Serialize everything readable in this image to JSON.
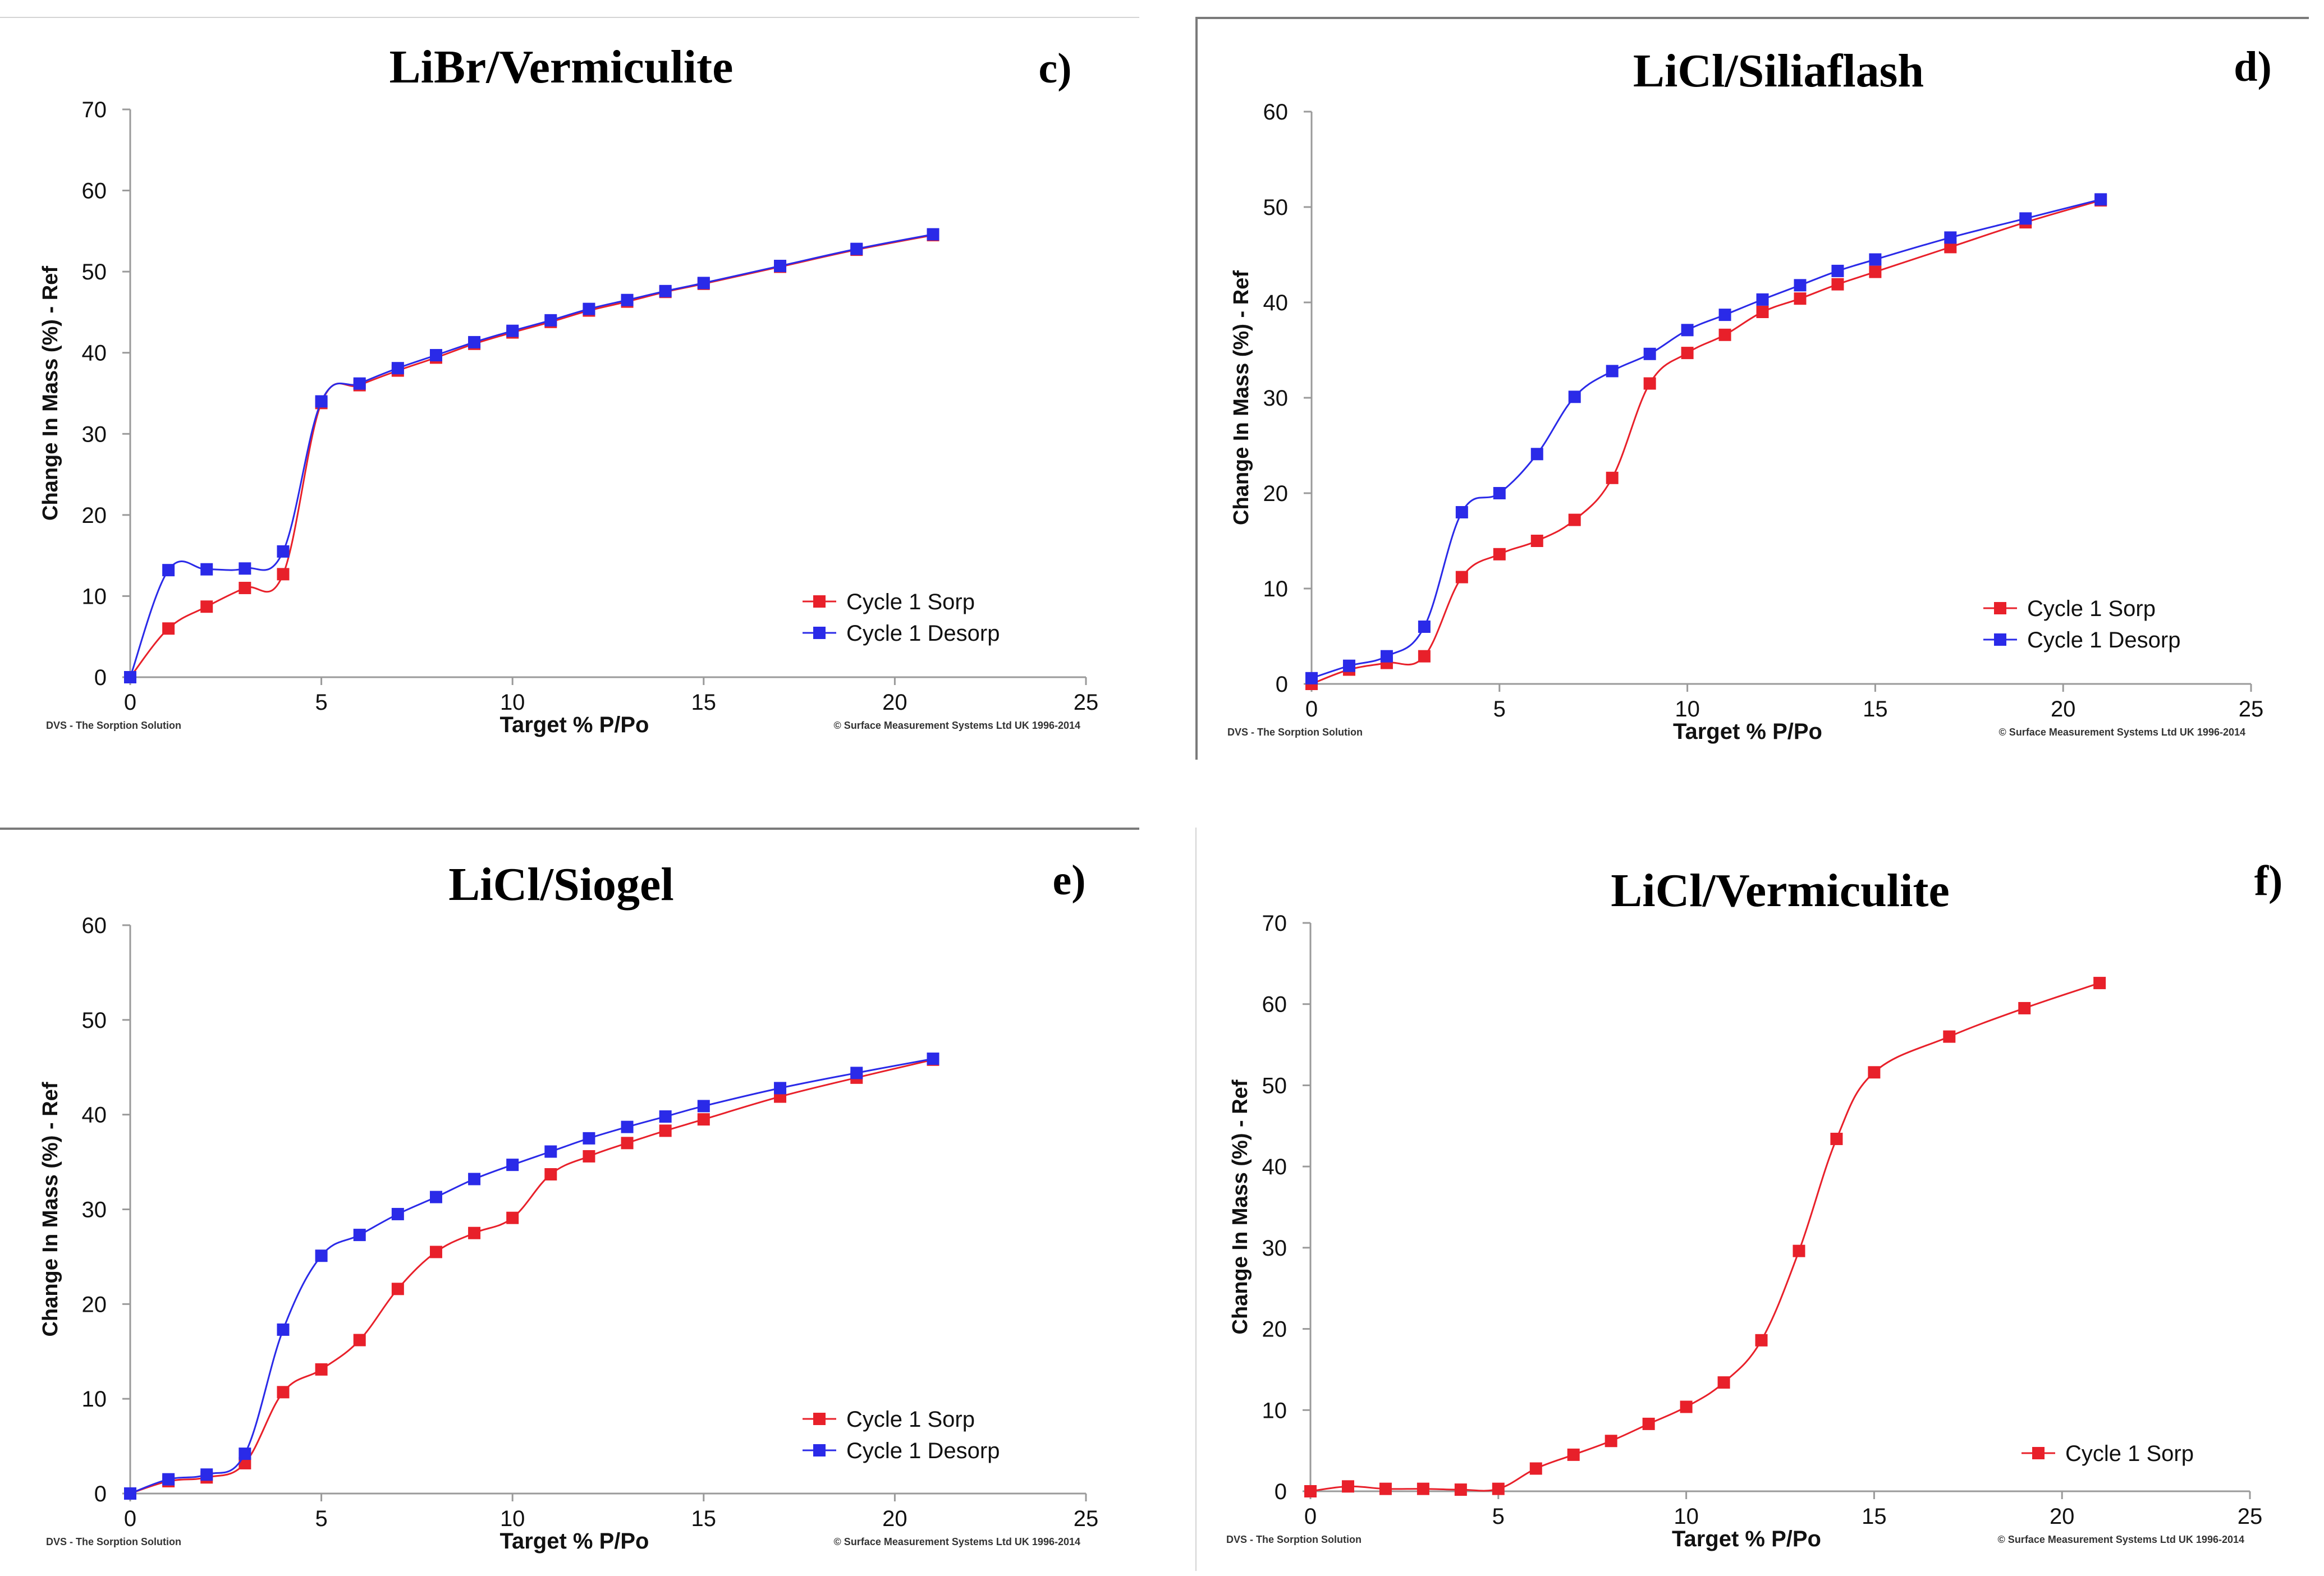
{
  "chart_data": [
    {
      "type": "line",
      "panel": "c)",
      "title": "LiBr/Vermiculite",
      "xlabel": "Target % P/Po",
      "ylabel": "Change In Mass (%) - Ref",
      "xlim": [
        0,
        25
      ],
      "ylim": [
        0,
        70
      ],
      "xticks": [
        0,
        5,
        10,
        15,
        20,
        25
      ],
      "yticks": [
        0,
        10,
        20,
        30,
        40,
        50,
        60,
        70
      ],
      "legend_position": "bottom-right",
      "footer_left": "DVS - The Sorption Solution",
      "footer_right": "© Surface Measurement Systems Ltd UK 1996-2014",
      "series": [
        {
          "name": "Cycle 1 Sorp",
          "color": "#e8202a",
          "x": [
            0,
            1,
            2,
            3,
            4,
            5,
            6,
            7,
            8,
            9,
            10,
            11,
            12,
            13,
            14,
            15,
            17,
            19,
            21
          ],
          "y": [
            0,
            6,
            8.7,
            11,
            12.7,
            33.8,
            36,
            37.8,
            39.4,
            41.1,
            42.5,
            43.8,
            45.2,
            46.3,
            47.5,
            48.5,
            50.6,
            52.7,
            54.5
          ]
        },
        {
          "name": "Cycle 1 Desorp",
          "color": "#2a2ae8",
          "x": [
            0,
            1,
            2,
            3,
            4,
            5,
            6,
            7,
            8,
            9,
            10,
            11,
            12,
            13,
            14,
            15,
            17,
            19,
            21
          ],
          "y": [
            0,
            13.2,
            13.3,
            13.4,
            15.5,
            34,
            36.2,
            38.1,
            39.7,
            41.3,
            42.7,
            44,
            45.4,
            46.5,
            47.6,
            48.6,
            50.7,
            52.8,
            54.6
          ]
        }
      ]
    },
    {
      "type": "line",
      "panel": "d)",
      "title": "LiCl/Siliaflash",
      "xlabel": "Target % P/Po",
      "ylabel": "Change In Mass (%) - Ref",
      "xlim": [
        0,
        25
      ],
      "ylim": [
        0,
        60
      ],
      "xticks": [
        0,
        5,
        10,
        15,
        20,
        25
      ],
      "yticks": [
        0,
        10,
        20,
        30,
        40,
        50,
        60
      ],
      "legend_position": "bottom-right",
      "footer_left": "DVS - The Sorption Solution",
      "footer_right": "© Surface Measurement Systems Ltd UK 1996-2014",
      "series": [
        {
          "name": "Cycle 1 Sorp",
          "color": "#e8202a",
          "x": [
            0,
            1,
            2,
            3,
            4,
            5,
            6,
            7,
            8,
            9,
            10,
            11,
            12,
            13,
            14,
            15,
            17,
            19,
            21
          ],
          "y": [
            0,
            1.5,
            2.2,
            2.9,
            11.2,
            13.6,
            15,
            17.2,
            21.6,
            31.5,
            34.7,
            36.6,
            39,
            40.4,
            41.9,
            43.2,
            45.8,
            48.4,
            50.7
          ]
        },
        {
          "name": "Cycle 1 Desorp",
          "color": "#2a2ae8",
          "x": [
            0,
            1,
            2,
            3,
            4,
            5,
            6,
            7,
            8,
            9,
            10,
            11,
            12,
            13,
            14,
            15,
            17,
            19,
            21
          ],
          "y": [
            0.6,
            1.9,
            2.9,
            6,
            18,
            20,
            24.1,
            30.1,
            32.8,
            34.6,
            37.1,
            38.7,
            40.3,
            41.8,
            43.3,
            44.5,
            46.8,
            48.8,
            50.8
          ]
        }
      ]
    },
    {
      "type": "line",
      "panel": "e)",
      "title": "LiCl/Siogel",
      "xlabel": "Target % P/Po",
      "ylabel": "Change In Mass (%) - Ref",
      "xlim": [
        0,
        25
      ],
      "ylim": [
        0,
        60
      ],
      "xticks": [
        0,
        5,
        10,
        15,
        20,
        25
      ],
      "yticks": [
        0,
        10,
        20,
        30,
        40,
        50,
        60
      ],
      "legend_position": "bottom-right",
      "footer_left": "DVS - The Sorption Solution",
      "footer_right": "© Surface Measurement Systems Ltd UK 1996-2014",
      "series": [
        {
          "name": "Cycle 1 Sorp",
          "color": "#e8202a",
          "x": [
            0,
            1,
            2,
            3,
            4,
            5,
            6,
            7,
            8,
            9,
            10,
            11,
            12,
            13,
            14,
            15,
            17,
            19,
            21
          ],
          "y": [
            0,
            1.3,
            1.7,
            3.2,
            10.7,
            13.1,
            16.2,
            21.6,
            25.5,
            27.5,
            29.1,
            33.7,
            35.6,
            37,
            38.3,
            39.5,
            41.9,
            43.9,
            45.8
          ]
        },
        {
          "name": "Cycle 1 Desorp",
          "color": "#2a2ae8",
          "x": [
            0,
            1,
            2,
            3,
            4,
            5,
            6,
            7,
            8,
            9,
            10,
            11,
            12,
            13,
            14,
            15,
            17,
            19,
            21
          ],
          "y": [
            0,
            1.5,
            2,
            4.2,
            17.3,
            25.1,
            27.3,
            29.5,
            31.3,
            33.2,
            34.7,
            36.1,
            37.5,
            38.7,
            39.8,
            40.9,
            42.8,
            44.4,
            45.9
          ]
        }
      ]
    },
    {
      "type": "line",
      "panel": "f)",
      "title": "LiCl/Vermiculite",
      "xlabel": "Target % P/Po",
      "ylabel": "Change In Mass (%) - Ref",
      "xlim": [
        0,
        25
      ],
      "ylim": [
        0,
        70
      ],
      "xticks": [
        0,
        5,
        10,
        15,
        20,
        25
      ],
      "yticks": [
        0,
        10,
        20,
        30,
        40,
        50,
        60,
        70
      ],
      "legend_position": "bottom-right",
      "footer_left": "DVS - The Sorption Solution",
      "footer_right": "© Surface Measurement Systems Ltd UK 1996-2014",
      "series": [
        {
          "name": "Cycle 1 Sorp",
          "color": "#e8202a",
          "x": [
            0,
            1,
            2,
            3,
            4,
            5,
            6,
            7,
            8,
            9,
            10,
            11,
            12,
            13,
            14,
            15,
            17,
            19,
            21
          ],
          "y": [
            0,
            0.6,
            0.3,
            0.3,
            0.2,
            0.3,
            2.8,
            4.5,
            6.2,
            8.3,
            10.4,
            13.4,
            18.6,
            29.6,
            43.4,
            51.6,
            56,
            59.5,
            62.6
          ]
        }
      ]
    }
  ]
}
